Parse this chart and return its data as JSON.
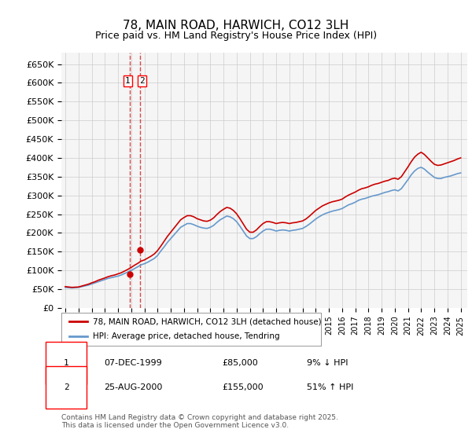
{
  "title": "78, MAIN ROAD, HARWICH, CO12 3LH",
  "subtitle": "Price paid vs. HM Land Registry's House Price Index (HPI)",
  "ylabel_ticks": [
    "£0",
    "£50K",
    "£100K",
    "£150K",
    "£200K",
    "£250K",
    "£300K",
    "£350K",
    "£400K",
    "£450K",
    "£500K",
    "£550K",
    "£600K",
    "£650K"
  ],
  "ylim": [
    0,
    680000
  ],
  "xlim_start": 1995,
  "xlim_end": 2025.5,
  "grid_color": "#cccccc",
  "background_color": "#ffffff",
  "plot_bg_color": "#f5f5f5",
  "red_line_color": "#cc0000",
  "blue_line_color": "#6699cc",
  "transaction1": {
    "label": "1",
    "date": "07-DEC-1999",
    "price": "£85,000",
    "hpi": "9% ↓ HPI",
    "x": 1999.92
  },
  "transaction2": {
    "label": "2",
    "date": "25-AUG-2000",
    "price": "£155,000",
    "hpi": "51% ↑ HPI",
    "x": 2000.64
  },
  "legend_line1": "78, MAIN ROAD, HARWICH, CO12 3LH (detached house)",
  "legend_line2": "HPI: Average price, detached house, Tendring",
  "footer": "Contains HM Land Registry data © Crown copyright and database right 2025.\nThis data is licensed under the Open Government Licence v3.0.",
  "hpi_data": {
    "years": [
      1995.0,
      1995.25,
      1995.5,
      1995.75,
      1996.0,
      1996.25,
      1996.5,
      1996.75,
      1997.0,
      1997.25,
      1997.5,
      1997.75,
      1998.0,
      1998.25,
      1998.5,
      1998.75,
      1999.0,
      1999.25,
      1999.5,
      1999.75,
      2000.0,
      2000.25,
      2000.5,
      2000.75,
      2001.0,
      2001.25,
      2001.5,
      2001.75,
      2002.0,
      2002.25,
      2002.5,
      2002.75,
      2003.0,
      2003.25,
      2003.5,
      2003.75,
      2004.0,
      2004.25,
      2004.5,
      2004.75,
      2005.0,
      2005.25,
      2005.5,
      2005.75,
      2006.0,
      2006.25,
      2006.5,
      2006.75,
      2007.0,
      2007.25,
      2007.5,
      2007.75,
      2008.0,
      2008.25,
      2008.5,
      2008.75,
      2009.0,
      2009.25,
      2009.5,
      2009.75,
      2010.0,
      2010.25,
      2010.5,
      2010.75,
      2011.0,
      2011.25,
      2011.5,
      2011.75,
      2012.0,
      2012.25,
      2012.5,
      2012.75,
      2013.0,
      2013.25,
      2013.5,
      2013.75,
      2014.0,
      2014.25,
      2014.5,
      2014.75,
      2015.0,
      2015.25,
      2015.5,
      2015.75,
      2016.0,
      2016.25,
      2016.5,
      2016.75,
      2017.0,
      2017.25,
      2017.5,
      2017.75,
      2018.0,
      2018.25,
      2018.5,
      2018.75,
      2019.0,
      2019.25,
      2019.5,
      2019.75,
      2020.0,
      2020.25,
      2020.5,
      2020.75,
      2021.0,
      2021.25,
      2021.5,
      2021.75,
      2022.0,
      2022.25,
      2022.5,
      2022.75,
      2023.0,
      2023.25,
      2023.5,
      2023.75,
      2024.0,
      2024.25,
      2024.5,
      2024.75,
      2025.0
    ],
    "values": [
      55000,
      54000,
      53500,
      54000,
      55000,
      57000,
      59000,
      61000,
      64000,
      67000,
      70000,
      73000,
      76000,
      79000,
      81000,
      83000,
      85000,
      88000,
      92000,
      96000,
      100000,
      105000,
      110000,
      115000,
      118000,
      122000,
      127000,
      132000,
      140000,
      152000,
      163000,
      175000,
      185000,
      195000,
      205000,
      215000,
      220000,
      225000,
      225000,
      222000,
      218000,
      215000,
      213000,
      212000,
      215000,
      220000,
      228000,
      235000,
      240000,
      245000,
      243000,
      238000,
      230000,
      218000,
      205000,
      192000,
      185000,
      185000,
      190000,
      198000,
      205000,
      210000,
      210000,
      208000,
      205000,
      207000,
      208000,
      207000,
      205000,
      207000,
      208000,
      210000,
      212000,
      217000,
      223000,
      230000,
      237000,
      243000,
      248000,
      252000,
      255000,
      258000,
      260000,
      262000,
      265000,
      270000,
      275000,
      278000,
      282000,
      287000,
      290000,
      292000,
      295000,
      298000,
      300000,
      302000,
      305000,
      308000,
      310000,
      313000,
      315000,
      312000,
      318000,
      330000,
      342000,
      355000,
      365000,
      372000,
      375000,
      370000,
      362000,
      355000,
      348000,
      345000,
      345000,
      348000,
      350000,
      352000,
      355000,
      358000,
      360000
    ]
  },
  "property_data": {
    "years": [
      1995.0,
      1995.25,
      1995.5,
      1995.75,
      1996.0,
      1996.25,
      1996.5,
      1996.75,
      1997.0,
      1997.25,
      1997.5,
      1997.75,
      1998.0,
      1998.25,
      1998.5,
      1998.75,
      1999.0,
      1999.25,
      1999.5,
      1999.75,
      2000.0,
      2000.25,
      2000.5,
      2000.75,
      2001.0,
      2001.25,
      2001.5,
      2001.75,
      2002.0,
      2002.25,
      2002.5,
      2002.75,
      2003.0,
      2003.25,
      2003.5,
      2003.75,
      2004.0,
      2004.25,
      2004.5,
      2004.75,
      2005.0,
      2005.25,
      2005.5,
      2005.75,
      2006.0,
      2006.25,
      2006.5,
      2006.75,
      2007.0,
      2007.25,
      2007.5,
      2007.75,
      2008.0,
      2008.25,
      2008.5,
      2008.75,
      2009.0,
      2009.25,
      2009.5,
      2009.75,
      2010.0,
      2010.25,
      2010.5,
      2010.75,
      2011.0,
      2011.25,
      2011.5,
      2011.75,
      2012.0,
      2012.25,
      2012.5,
      2012.75,
      2013.0,
      2013.25,
      2013.5,
      2013.75,
      2014.0,
      2014.25,
      2014.5,
      2014.75,
      2015.0,
      2015.25,
      2015.5,
      2015.75,
      2016.0,
      2016.25,
      2016.5,
      2016.75,
      2017.0,
      2017.25,
      2017.5,
      2017.75,
      2018.0,
      2018.25,
      2018.5,
      2018.75,
      2019.0,
      2019.25,
      2019.5,
      2019.75,
      2020.0,
      2020.25,
      2020.5,
      2020.75,
      2021.0,
      2021.25,
      2021.5,
      2021.75,
      2022.0,
      2022.25,
      2022.5,
      2022.75,
      2023.0,
      2023.25,
      2023.5,
      2023.75,
      2024.0,
      2024.25,
      2024.5,
      2024.75,
      2025.0
    ],
    "values": [
      57000,
      56000,
      55000,
      55500,
      56000,
      58500,
      61000,
      63500,
      67000,
      70000,
      74000,
      77000,
      80000,
      83500,
      86000,
      88000,
      91000,
      94000,
      98500,
      103000,
      108000,
      114000,
      119000,
      125000,
      128000,
      133000,
      138000,
      144000,
      153000,
      165000,
      178000,
      191000,
      202000,
      213000,
      224000,
      235000,
      241000,
      246000,
      246000,
      243000,
      238000,
      235000,
      232000,
      231000,
      234000,
      240000,
      249000,
      257000,
      263000,
      268000,
      266000,
      260000,
      251000,
      238000,
      224000,
      210000,
      202000,
      202000,
      208000,
      217000,
      225000,
      230000,
      230000,
      228000,
      225000,
      227000,
      228000,
      227000,
      225000,
      227000,
      228000,
      230000,
      232000,
      237000,
      244000,
      252000,
      260000,
      266000,
      272000,
      276000,
      280000,
      283000,
      285000,
      287000,
      290000,
      296000,
      301000,
      305000,
      309000,
      314000,
      318000,
      320000,
      323000,
      327000,
      330000,
      332000,
      335000,
      338000,
      340000,
      344000,
      346000,
      343000,
      350000,
      363000,
      376000,
      390000,
      402000,
      410000,
      415000,
      409000,
      400000,
      391000,
      383000,
      380000,
      381000,
      384000,
      387000,
      390000,
      393000,
      397000,
      400000
    ]
  }
}
